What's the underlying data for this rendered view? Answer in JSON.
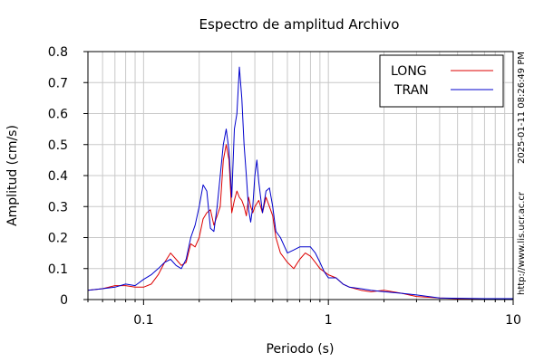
{
  "chart_data": {
    "type": "line",
    "title": "Espectro de amplitud Archivo",
    "xlabel": "Periodo (s)",
    "ylabel": "Amplitud (cm/s)",
    "x_scale": "log",
    "xlim": [
      0.05,
      10
    ],
    "ylim": [
      0,
      0.8
    ],
    "x_ticks": [
      {
        "value": 0.1,
        "label": "0.1"
      },
      {
        "value": 1,
        "label": "1"
      },
      {
        "value": 10,
        "label": "10"
      }
    ],
    "y_ticks": [
      {
        "value": 0,
        "label": "0"
      },
      {
        "value": 0.1,
        "label": "0.1"
      },
      {
        "value": 0.2,
        "label": "0.2"
      },
      {
        "value": 0.3,
        "label": "0.3"
      },
      {
        "value": 0.4,
        "label": "0.4"
      },
      {
        "value": 0.5,
        "label": "0.5"
      },
      {
        "value": 0.6,
        "label": "0.6"
      },
      {
        "value": 0.7,
        "label": "0.7"
      },
      {
        "value": 0.8,
        "label": "0.8"
      }
    ],
    "grid": true,
    "legend_position": "top-right",
    "series": [
      {
        "name": "LONG",
        "color": "#dd0000",
        "points": [
          [
            0.05,
            0.03
          ],
          [
            0.06,
            0.035
          ],
          [
            0.07,
            0.045
          ],
          [
            0.08,
            0.045
          ],
          [
            0.09,
            0.04
          ],
          [
            0.1,
            0.04
          ],
          [
            0.11,
            0.05
          ],
          [
            0.12,
            0.08
          ],
          [
            0.13,
            0.12
          ],
          [
            0.14,
            0.15
          ],
          [
            0.15,
            0.13
          ],
          [
            0.16,
            0.11
          ],
          [
            0.17,
            0.12
          ],
          [
            0.18,
            0.18
          ],
          [
            0.19,
            0.17
          ],
          [
            0.2,
            0.2
          ],
          [
            0.21,
            0.26
          ],
          [
            0.22,
            0.28
          ],
          [
            0.23,
            0.29
          ],
          [
            0.24,
            0.24
          ],
          [
            0.25,
            0.27
          ],
          [
            0.26,
            0.3
          ],
          [
            0.27,
            0.45
          ],
          [
            0.28,
            0.5
          ],
          [
            0.29,
            0.45
          ],
          [
            0.3,
            0.28
          ],
          [
            0.31,
            0.32
          ],
          [
            0.32,
            0.35
          ],
          [
            0.33,
            0.33
          ],
          [
            0.34,
            0.32
          ],
          [
            0.35,
            0.3
          ],
          [
            0.36,
            0.27
          ],
          [
            0.37,
            0.33
          ],
          [
            0.38,
            0.3
          ],
          [
            0.39,
            0.28
          ],
          [
            0.4,
            0.3
          ],
          [
            0.42,
            0.32
          ],
          [
            0.44,
            0.28
          ],
          [
            0.46,
            0.33
          ],
          [
            0.48,
            0.3
          ],
          [
            0.5,
            0.27
          ],
          [
            0.52,
            0.2
          ],
          [
            0.55,
            0.15
          ],
          [
            0.6,
            0.12
          ],
          [
            0.65,
            0.1
          ],
          [
            0.7,
            0.13
          ],
          [
            0.75,
            0.15
          ],
          [
            0.8,
            0.14
          ],
          [
            0.85,
            0.12
          ],
          [
            0.9,
            0.1
          ],
          [
            0.95,
            0.09
          ],
          [
            1.0,
            0.08
          ],
          [
            1.1,
            0.07
          ],
          [
            1.2,
            0.05
          ],
          [
            1.3,
            0.04
          ],
          [
            1.5,
            0.03
          ],
          [
            1.7,
            0.025
          ],
          [
            2.0,
            0.03
          ],
          [
            2.5,
            0.02
          ],
          [
            3.0,
            0.01
          ],
          [
            4.0,
            0.005
          ],
          [
            5.0,
            0.003
          ],
          [
            7.0,
            0.003
          ],
          [
            10.0,
            0.002
          ]
        ]
      },
      {
        "name": "TRAN",
        "color": "#0000cc",
        "points": [
          [
            0.05,
            0.03
          ],
          [
            0.06,
            0.035
          ],
          [
            0.07,
            0.04
          ],
          [
            0.08,
            0.05
          ],
          [
            0.09,
            0.045
          ],
          [
            0.1,
            0.065
          ],
          [
            0.11,
            0.08
          ],
          [
            0.12,
            0.1
          ],
          [
            0.13,
            0.12
          ],
          [
            0.14,
            0.13
          ],
          [
            0.15,
            0.11
          ],
          [
            0.16,
            0.1
          ],
          [
            0.17,
            0.13
          ],
          [
            0.18,
            0.2
          ],
          [
            0.19,
            0.24
          ],
          [
            0.2,
            0.3
          ],
          [
            0.21,
            0.37
          ],
          [
            0.22,
            0.35
          ],
          [
            0.23,
            0.23
          ],
          [
            0.24,
            0.22
          ],
          [
            0.25,
            0.3
          ],
          [
            0.26,
            0.4
          ],
          [
            0.27,
            0.5
          ],
          [
            0.28,
            0.55
          ],
          [
            0.29,
            0.48
          ],
          [
            0.3,
            0.33
          ],
          [
            0.31,
            0.55
          ],
          [
            0.32,
            0.6
          ],
          [
            0.33,
            0.75
          ],
          [
            0.34,
            0.65
          ],
          [
            0.35,
            0.5
          ],
          [
            0.36,
            0.4
          ],
          [
            0.37,
            0.29
          ],
          [
            0.38,
            0.25
          ],
          [
            0.39,
            0.3
          ],
          [
            0.4,
            0.4
          ],
          [
            0.41,
            0.45
          ],
          [
            0.42,
            0.38
          ],
          [
            0.44,
            0.28
          ],
          [
            0.46,
            0.35
          ],
          [
            0.48,
            0.36
          ],
          [
            0.5,
            0.3
          ],
          [
            0.52,
            0.22
          ],
          [
            0.55,
            0.2
          ],
          [
            0.6,
            0.15
          ],
          [
            0.65,
            0.16
          ],
          [
            0.7,
            0.17
          ],
          [
            0.75,
            0.17
          ],
          [
            0.8,
            0.17
          ],
          [
            0.85,
            0.15
          ],
          [
            0.9,
            0.12
          ],
          [
            0.95,
            0.09
          ],
          [
            1.0,
            0.07
          ],
          [
            1.1,
            0.07
          ],
          [
            1.2,
            0.05
          ],
          [
            1.3,
            0.04
          ],
          [
            1.5,
            0.035
          ],
          [
            1.7,
            0.03
          ],
          [
            2.0,
            0.025
          ],
          [
            2.5,
            0.02
          ],
          [
            3.0,
            0.015
          ],
          [
            4.0,
            0.005
          ],
          [
            5.0,
            0.004
          ],
          [
            7.0,
            0.003
          ],
          [
            10.0,
            0.003
          ]
        ]
      }
    ]
  },
  "side_text": {
    "timestamp": "2025-01-11 08:26:49 PM",
    "url": "http://www.lis.ucr.ac.cr"
  }
}
